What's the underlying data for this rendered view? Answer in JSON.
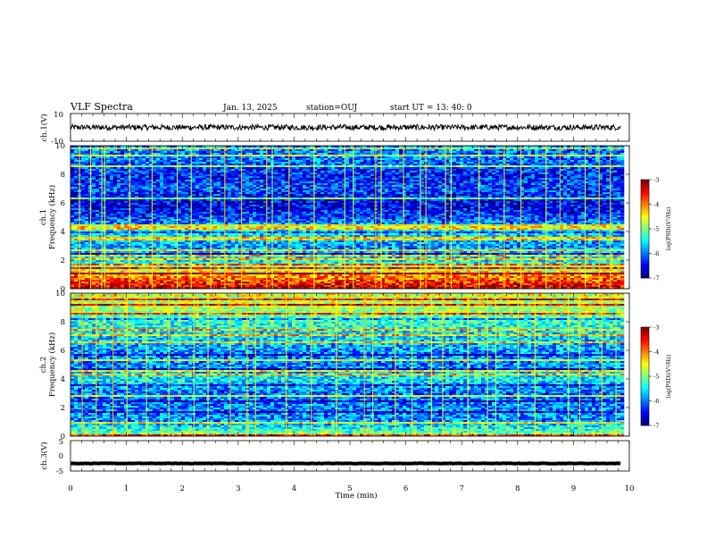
{
  "header": {
    "title": "VLF Spectra",
    "date": "Jan. 13, 2025",
    "station": "station=OUJ",
    "start": "start  UT =  13: 40: 0"
  },
  "colors": {
    "waveform": "#000000",
    "background": "#ffffff",
    "colormap": [
      "#00007f",
      "#0000ff",
      "#007fff",
      "#00ffff",
      "#7fff7f",
      "#ffff00",
      "#ff7f00",
      "#ff0000",
      "#7f0000"
    ]
  },
  "chart_data": [
    {
      "type": "line",
      "ylabel": "ch.1(V)",
      "ylim": [
        -10,
        10
      ],
      "y_ticks": [
        "10",
        "-10"
      ],
      "x_range_min": [
        0,
        9.85
      ],
      "description_values": {
        "mean_level": 0,
        "noise_amplitude": 2
      }
    },
    {
      "type": "heatmap",
      "ylabel": "ch.1\nFrequency (kHz)",
      "ylim": [
        0,
        10
      ],
      "y_ticks": [
        "10",
        "8",
        "6",
        "4",
        "2",
        "0"
      ],
      "x_range_min": [
        0,
        9.85
      ],
      "colorbar": {
        "label": "log(PSD)(V²/Hz)",
        "range": [
          -7,
          -3
        ],
        "ticks": [
          "-3",
          "-4",
          "-5",
          "-6",
          "-7"
        ]
      },
      "intensity_profile": [
        -3.2,
        -4.2,
        -5.6,
        -5.9,
        -5.5,
        -6.3,
        -6.6,
        -6.2,
        -6.4,
        -6.1,
        -6.0
      ],
      "bursts_min": [
        0.15,
        0.35,
        0.55,
        0.6,
        1.05,
        1.45,
        1.9,
        2.15,
        2.5,
        2.75,
        3.05,
        3.5,
        3.6,
        3.9,
        4.35,
        4.9,
        5.05,
        5.45,
        5.55,
        5.95,
        6.25,
        6.35,
        6.7,
        6.8,
        7.3,
        7.75,
        8.05,
        8.5,
        8.75,
        9.2,
        9.45,
        9.65
      ]
    },
    {
      "type": "heatmap",
      "ylabel": "ch.2\nFrequency (kHz)",
      "ylim": [
        0,
        10
      ],
      "y_ticks": [
        "10",
        "8",
        "6",
        "4",
        "2",
        "0"
      ],
      "x_range_min": [
        0,
        9.85
      ],
      "colorbar": {
        "label": "log(PSD)(V²/Hz)",
        "range": [
          -7,
          -3
        ],
        "ticks": [
          "-3",
          "-4",
          "-5",
          "-6",
          "-7"
        ]
      },
      "intensity_profile": [
        -4.8,
        -5.9,
        -6.0,
        -6.1,
        -5.5,
        -6.0,
        -5.9,
        -5.6,
        -5.3,
        -4.8,
        -4.6
      ],
      "bursts_min": [
        0.2,
        0.45,
        0.75,
        1.0,
        1.35,
        1.75,
        2.2,
        2.45,
        2.85,
        3.15,
        3.3,
        3.85,
        4.3,
        4.75,
        5.25,
        5.4,
        5.8,
        6.1,
        6.45,
        6.65,
        7.1,
        7.45,
        7.6,
        8.0,
        8.3,
        8.9,
        9.1,
        9.5,
        9.75
      ]
    },
    {
      "type": "line",
      "ylabel": "ch.3(V)",
      "ylim": [
        -5,
        5
      ],
      "y_ticks": [
        "5",
        "0",
        "-5"
      ],
      "x_range_min": [
        0,
        9.85
      ],
      "description_values": {
        "mean_level": -2.5,
        "noise_amplitude": 0.3
      }
    }
  ],
  "x_axis": {
    "label": "Time (min)",
    "ticks": [
      "0",
      "1",
      "2",
      "3",
      "4",
      "5",
      "6",
      "7",
      "8",
      "9",
      "10"
    ],
    "range": [
      0,
      10
    ]
  }
}
